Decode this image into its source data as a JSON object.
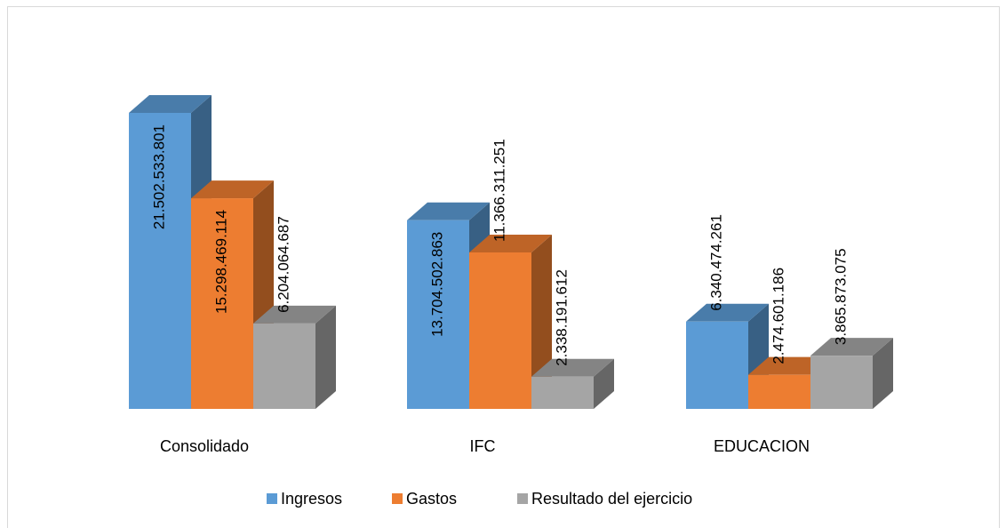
{
  "chart_data": {
    "type": "bar3d",
    "categories": [
      "Consolidado",
      "IFC",
      "EDUCACION"
    ],
    "series": [
      {
        "name": "Ingresos",
        "color": "#5b9bd5",
        "values": [
          21502533801,
          13704502863,
          6340474261
        ],
        "value_labels": [
          "21.502.533.801",
          "13.704.502.863",
          "6.340.474.261"
        ]
      },
      {
        "name": "Gastos",
        "color": "#ed7d31",
        "values": [
          15298469114,
          11366311251,
          2474601186
        ],
        "value_labels": [
          "15.298.469.114",
          "11.366.311.251",
          "2.474.601.186"
        ]
      },
      {
        "name": "Resultado del ejercicio",
        "color": "#a5a5a5",
        "values": [
          6204064687,
          2338191612,
          3865873075
        ],
        "value_labels": [
          "6.204.064.687",
          "2.338.191.612",
          "3.865.873.075"
        ]
      }
    ],
    "legend": "bottom"
  }
}
